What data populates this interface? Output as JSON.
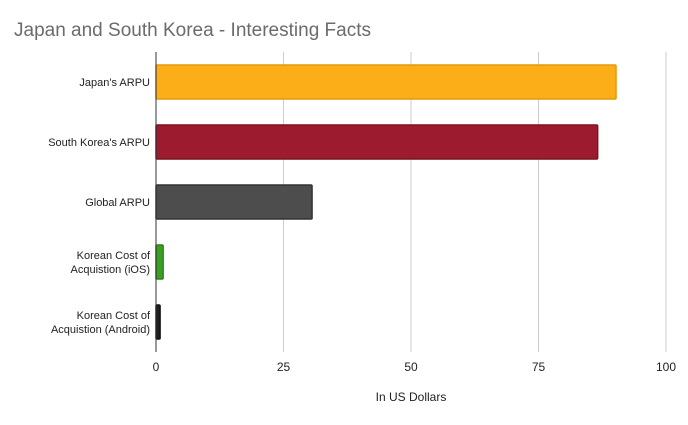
{
  "chart_data": {
    "type": "bar",
    "orientation": "horizontal",
    "title": "Japan and South Korea - Interesting Facts",
    "xlabel": "In US Dollars",
    "ylabel": "",
    "xlim": [
      0,
      100
    ],
    "xticks": [
      0,
      25,
      50,
      75,
      100
    ],
    "grid": "vertical",
    "legend": "none",
    "categories": [
      [
        "Japan's ARPU"
      ],
      [
        "South Korea's ARPU"
      ],
      [
        "Global ARPU"
      ],
      [
        "Korean Cost of",
        "Acquistion (iOS)"
      ],
      [
        "Korean Cost of",
        "Acquistion (Android)"
      ]
    ],
    "values": [
      90.2,
      86.6,
      30.6,
      1.4,
      0.8
    ],
    "colors": [
      "#fbae17",
      "#9c1b2e",
      "#4d4d4d",
      "#3aa023",
      "#1f1f1f"
    ],
    "border_colors": [
      "#e39a0a",
      "#7a1322",
      "#333333",
      "#2b8418",
      "#111111"
    ]
  }
}
